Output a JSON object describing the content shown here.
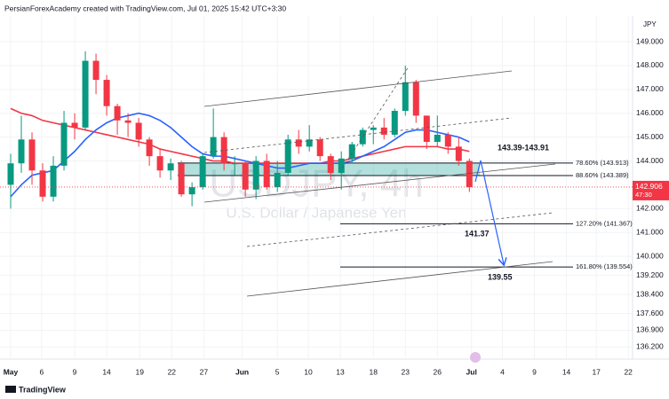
{
  "header": "PersianForexAcademy created with TradingView.com, Jul 01, 2025 15:42 UTC+3:30",
  "chart_data": {
    "type": "candlestick",
    "title": "USDJPY, 4h",
    "subtitle": "U.S. Dollar / Japanese Yen",
    "currency": "JPY",
    "up_color": "#089981",
    "down_color": "#f23645",
    "x": [
      0,
      1,
      2,
      3,
      4,
      5,
      6,
      7,
      8,
      9,
      10,
      11,
      12,
      13,
      14,
      15,
      16,
      17,
      18,
      19,
      20,
      21,
      22,
      23,
      24,
      25,
      26,
      27,
      28,
      29,
      30,
      31,
      32,
      33,
      34,
      35,
      36,
      37,
      38,
      39,
      40,
      41,
      42,
      43
    ],
    "open": [
      143.0,
      143.9,
      144.9,
      143.6,
      142.5,
      143.8,
      145.6,
      145.4,
      148.2,
      147.4,
      146.3,
      145.7,
      145.6,
      144.9,
      144.2,
      143.6,
      143.9,
      142.6,
      142.9,
      144.2,
      145.0,
      143.9,
      143.9,
      142.8,
      144.0,
      142.9,
      143.5,
      144.9,
      144.6,
      144.9,
      144.2,
      143.5,
      144.1,
      144.7,
      145.3,
      145.4,
      145.1,
      146.1,
      147.3,
      145.9,
      144.8,
      145.1,
      144.6,
      144.0
    ],
    "high": [
      144.3,
      145.9,
      145.2,
      143.9,
      144.2,
      146.1,
      146.0,
      148.6,
      148.5,
      147.6,
      146.4,
      146.0,
      145.8,
      145.0,
      144.5,
      144.1,
      144.0,
      143.1,
      144.3,
      146.2,
      145.2,
      144.2,
      144.0,
      144.2,
      144.3,
      144.0,
      145.1,
      145.3,
      145.5,
      145.0,
      144.3,
      144.4,
      144.8,
      145.4,
      145.5,
      145.8,
      146.2,
      148.0,
      147.4,
      145.9,
      145.9,
      145.2,
      145.0,
      144.1
    ],
    "low": [
      142.0,
      143.5,
      143.0,
      142.3,
      142.3,
      143.6,
      144.9,
      145.3,
      146.8,
      145.9,
      145.1,
      145.0,
      144.6,
      143.8,
      143.3,
      143.2,
      142.5,
      142.1,
      142.8,
      144.1,
      143.6,
      143.4,
      142.5,
      142.4,
      142.8,
      142.7,
      143.4,
      144.3,
      144.4,
      144.0,
      143.2,
      142.8,
      143.9,
      144.6,
      144.7,
      144.9,
      145.0,
      145.9,
      145.6,
      144.5,
      144.6,
      144.3,
      143.8,
      142.7
    ],
    "close": [
      143.9,
      144.9,
      143.6,
      142.5,
      143.8,
      145.6,
      145.4,
      148.2,
      147.4,
      146.3,
      145.7,
      145.6,
      144.9,
      144.2,
      143.6,
      143.9,
      142.6,
      142.9,
      144.2,
      145.0,
      143.9,
      143.9,
      142.8,
      144.0,
      142.9,
      143.5,
      144.9,
      144.6,
      144.9,
      144.2,
      143.5,
      144.1,
      144.7,
      145.3,
      145.4,
      145.1,
      146.1,
      147.3,
      145.9,
      144.8,
      145.1,
      144.6,
      144.0,
      142.9
    ],
    "moving_averages": [
      {
        "color": "#f23645",
        "values": [
          146.2,
          146.0,
          145.9,
          145.7,
          145.6,
          145.5,
          145.4,
          145.3,
          145.2,
          145.1,
          145.0,
          144.9,
          144.8,
          144.7,
          144.5,
          144.4,
          144.3,
          144.2,
          144.1,
          144.0,
          144.0,
          143.9,
          143.9,
          143.9,
          143.9,
          143.9,
          143.9,
          143.9,
          143.9,
          143.9,
          144.0,
          144.0,
          144.1,
          144.2,
          144.3,
          144.4,
          144.5,
          144.6,
          144.6,
          144.6,
          144.6,
          144.5,
          144.5,
          144.4
        ]
      },
      {
        "color": "#2962ff",
        "values": [
          142.5,
          143.0,
          143.4,
          143.5,
          143.6,
          144.0,
          144.4,
          144.9,
          145.3,
          145.6,
          145.8,
          145.9,
          146.0,
          145.9,
          145.7,
          145.4,
          145.0,
          144.6,
          144.3,
          144.2,
          144.2,
          144.1,
          144.0,
          143.9,
          143.8,
          143.7,
          143.7,
          143.8,
          143.9,
          143.9,
          143.9,
          143.9,
          144.0,
          144.2,
          144.4,
          144.6,
          144.9,
          145.2,
          145.3,
          145.3,
          145.2,
          145.1,
          145.0,
          144.8
        ]
      }
    ],
    "xlim": [
      -1,
      58.3
    ],
    "xticks": [
      {
        "value": 0,
        "label": "May"
      },
      {
        "value": 2.9,
        "label": "6"
      },
      {
        "value": 6,
        "label": "9"
      },
      {
        "value": 9,
        "label": "14"
      },
      {
        "value": 12.1,
        "label": "19"
      },
      {
        "value": 15.1,
        "label": "22"
      },
      {
        "value": 18.1,
        "label": "27"
      },
      {
        "value": 21.7,
        "label": "Jun"
      },
      {
        "value": 25,
        "label": "5"
      },
      {
        "value": 27.9,
        "label": "10"
      },
      {
        "value": 30.9,
        "label": "13"
      },
      {
        "value": 34,
        "label": "18"
      },
      {
        "value": 37,
        "label": "23"
      },
      {
        "value": 40,
        "label": "26"
      },
      {
        "value": 43.2,
        "label": "Jul"
      },
      {
        "value": 46.1,
        "label": "4"
      },
      {
        "value": 49.1,
        "label": "9"
      },
      {
        "value": 52.1,
        "label": "14"
      },
      {
        "value": 54.9,
        "label": "17"
      },
      {
        "value": 57.9,
        "label": "22"
      }
    ],
    "ylim": [
      135.69,
      150.08
    ],
    "yticks": [
      {
        "value": 149,
        "label": "149.000"
      },
      {
        "value": 148,
        "label": "148.000"
      },
      {
        "value": 147,
        "label": "147.000"
      },
      {
        "value": 146,
        "label": "146.000"
      },
      {
        "value": 145,
        "label": "145.000"
      },
      {
        "value": 144,
        "label": "144.000"
      },
      {
        "value": 142,
        "label": "142.000"
      },
      {
        "value": 141,
        "label": "141.000"
      },
      {
        "value": 140,
        "label": "140.000"
      },
      {
        "value": 139.2,
        "label": "139.200"
      },
      {
        "value": 138.4,
        "label": "138.400"
      },
      {
        "value": 137.6,
        "label": "137.600"
      },
      {
        "value": 136.9,
        "label": "136.900"
      },
      {
        "value": 136.2,
        "label": "136.200"
      }
    ],
    "last_price": 142.906,
    "countdown": "47:30",
    "fib_levels": [
      {
        "text": "78.60% (143.913)",
        "price": 143.913
      },
      {
        "text": "88.60% (143.389)",
        "price": 143.389
      },
      {
        "text": "127.20% (141.367)",
        "price": 141.367
      },
      {
        "text": "161.80% (139.554)",
        "price": 139.554
      }
    ],
    "zone_label": "143.39-143.91",
    "targets": [
      "141.37",
      "139.55"
    ]
  },
  "footer": "TradingView"
}
